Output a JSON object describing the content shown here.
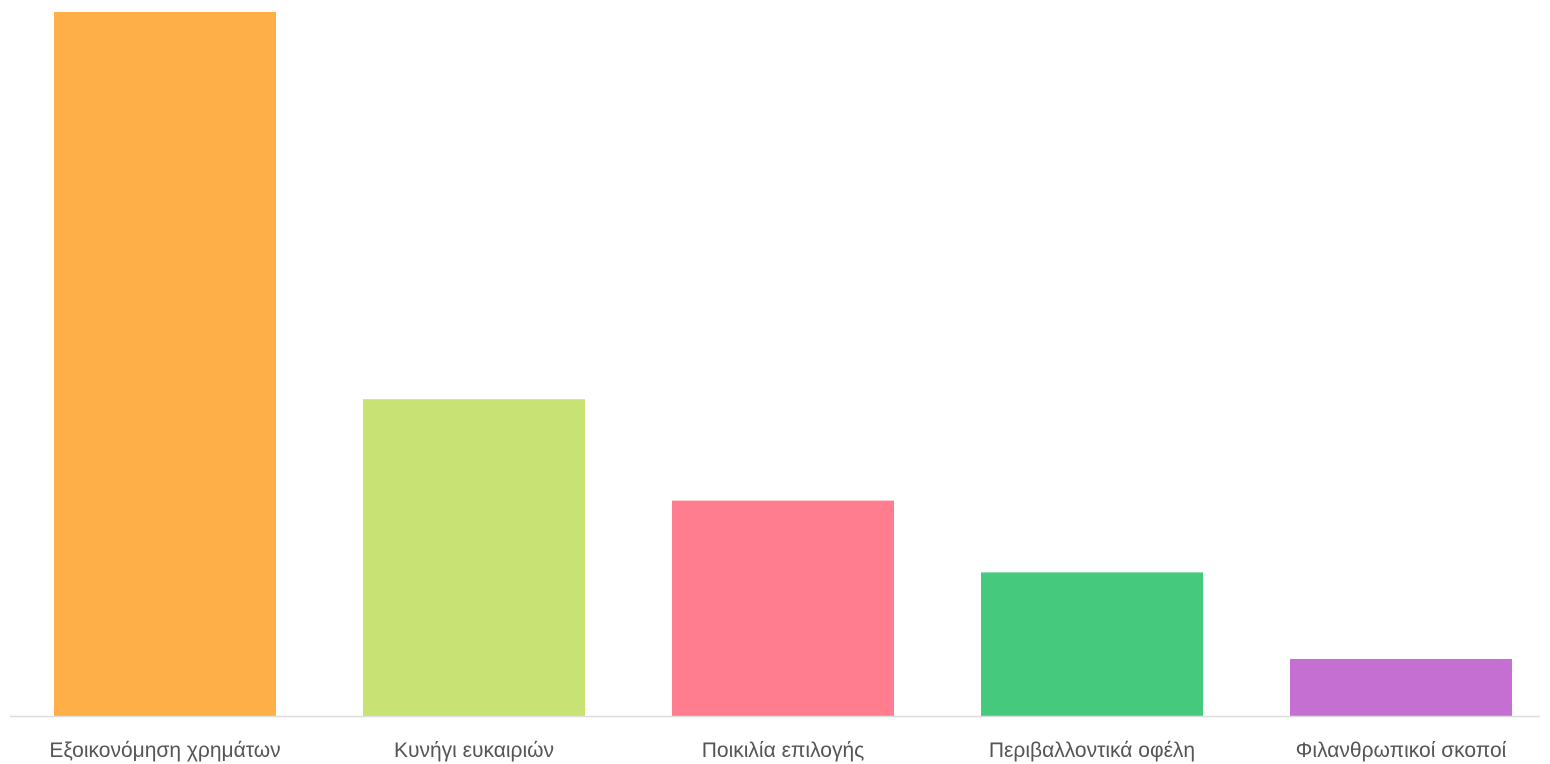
{
  "chart_data": {
    "type": "bar",
    "categories": [
      "Εξοικονόμηση χρημάτων",
      "Κυνήγι ευκαιριών",
      "Ποικιλία επιλογής",
      "Περιβαλλοντικά οφέλη",
      "Φιλανθρωπικοί σκοποί"
    ],
    "values": [
      100,
      45,
      30.6,
      20.4,
      8.1
    ],
    "colors": [
      "#FFAF47",
      "#C8E274",
      "#FF7D8E",
      "#45CA7D",
      "#C56FD2"
    ],
    "ylim": [
      0,
      100
    ],
    "title": "",
    "xlabel": "",
    "ylabel": "",
    "grid": false,
    "legend": "none",
    "axis_color": "#DDDDDD"
  }
}
